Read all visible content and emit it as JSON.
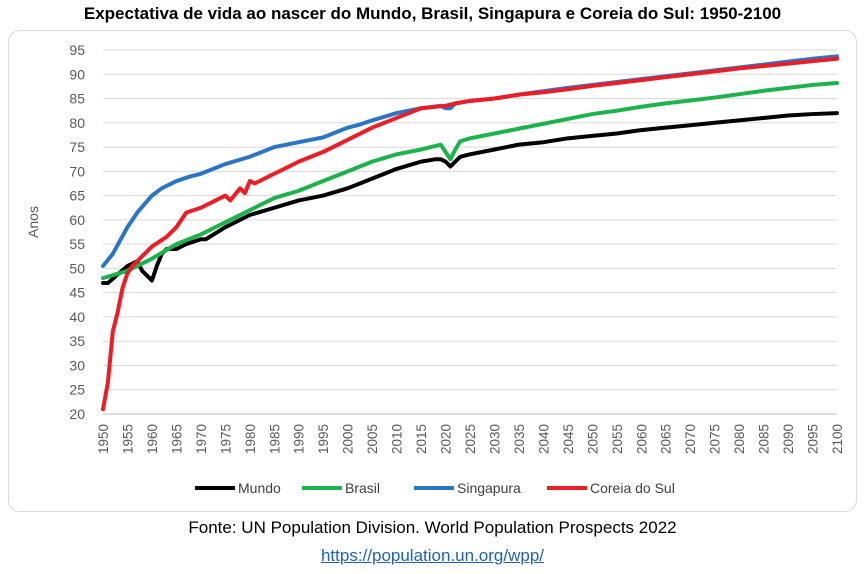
{
  "chart_data": {
    "type": "line",
    "title": "Expectativa de vida ao nascer do Mundo, Brasil, Singapura e Coreia do Sul: 1950-2100",
    "xlabel": "",
    "ylabel": "Anos",
    "xlim": [
      1950,
      2100
    ],
    "ylim": [
      20,
      95
    ],
    "yticks": [
      20,
      25,
      30,
      35,
      40,
      45,
      50,
      55,
      60,
      65,
      70,
      75,
      80,
      85,
      90,
      95
    ],
    "xticks": [
      1950,
      1955,
      1960,
      1965,
      1970,
      1975,
      1980,
      1985,
      1990,
      1995,
      2000,
      2005,
      2010,
      2015,
      2020,
      2025,
      2030,
      2035,
      2040,
      2045,
      2050,
      2055,
      2060,
      2065,
      2070,
      2075,
      2080,
      2085,
      2090,
      2095,
      2100
    ],
    "grid": true,
    "legend": "bottom",
    "series": [
      {
        "name": "Mundo",
        "color": "#000000",
        "x": [
          1950,
          1951,
          1955,
          1957,
          1958,
          1959,
          1960,
          1961,
          1962,
          1963,
          1964,
          1965,
          1967,
          1970,
          1971,
          1975,
          1980,
          1985,
          1990,
          1995,
          2000,
          2005,
          2010,
          2015,
          2018,
          2019,
          2020,
          2021,
          2022,
          2023,
          2025,
          2030,
          2035,
          2040,
          2045,
          2050,
          2055,
          2060,
          2065,
          2070,
          2075,
          2080,
          2085,
          2090,
          2095,
          2100
        ],
        "y": [
          47.0,
          47.0,
          50.5,
          51.5,
          49.5,
          48.5,
          47.5,
          50.5,
          53.0,
          54.0,
          54.0,
          54.0,
          55.0,
          56.0,
          56.0,
          58.5,
          61.0,
          62.5,
          64.0,
          65.0,
          66.5,
          68.5,
          70.5,
          72.0,
          72.5,
          72.5,
          72.0,
          71.0,
          72.0,
          73.0,
          73.5,
          74.5,
          75.5,
          76.0,
          76.8,
          77.3,
          77.8,
          78.5,
          79.0,
          79.5,
          80.0,
          80.5,
          81.0,
          81.5,
          81.8,
          82.0
        ]
      },
      {
        "name": "Brasil",
        "color": "#1cb34a",
        "x": [
          1950,
          1955,
          1960,
          1965,
          1970,
          1975,
          1980,
          1985,
          1990,
          1995,
          2000,
          2005,
          2010,
          2015,
          2019,
          2020,
          2021,
          2022,
          2023,
          2025,
          2030,
          2035,
          2040,
          2045,
          2050,
          2055,
          2060,
          2065,
          2070,
          2075,
          2080,
          2085,
          2090,
          2095,
          2100
        ],
        "y": [
          48.0,
          49.5,
          52.0,
          55.0,
          57.0,
          59.5,
          62.0,
          64.5,
          66.0,
          68.0,
          70.0,
          72.0,
          73.5,
          74.5,
          75.5,
          74.0,
          72.5,
          74.5,
          76.2,
          76.8,
          77.8,
          78.8,
          79.8,
          80.8,
          81.8,
          82.5,
          83.3,
          84.0,
          84.6,
          85.2,
          85.9,
          86.6,
          87.2,
          87.8,
          88.2
        ]
      },
      {
        "name": "Singapura",
        "color": "#2a75c8",
        "x": [
          1950,
          1952,
          1955,
          1957,
          1960,
          1962,
          1965,
          1968,
          1970,
          1975,
          1980,
          1985,
          1990,
          1995,
          2000,
          2002,
          2005,
          2010,
          2015,
          2019,
          2020,
          2021,
          2022,
          2025,
          2030,
          2035,
          2040,
          2045,
          2050,
          2055,
          2060,
          2065,
          2070,
          2075,
          2080,
          2085,
          2090,
          2095,
          2100
        ],
        "y": [
          50.5,
          53.0,
          58.5,
          61.5,
          65.0,
          66.5,
          68.0,
          69.0,
          69.5,
          71.5,
          73.0,
          75.0,
          76.0,
          77.0,
          79.0,
          79.5,
          80.5,
          82.0,
          83.0,
          83.5,
          83.0,
          83.0,
          84.0,
          84.5,
          85.0,
          85.8,
          86.5,
          87.2,
          87.8,
          88.4,
          89.0,
          89.6,
          90.2,
          90.8,
          91.4,
          92.0,
          92.6,
          93.2,
          93.7
        ]
      },
      {
        "name": "Coreia do Sul",
        "color": "#ee1c24",
        "x": [
          1950,
          1951,
          1952,
          1953,
          1954,
          1955,
          1956,
          1958,
          1960,
          1963,
          1965,
          1967,
          1970,
          1975,
          1976,
          1978,
          1979,
          1980,
          1981,
          1985,
          1990,
          1995,
          2000,
          2005,
          2010,
          2015,
          2020,
          2022,
          2025,
          2030,
          2035,
          2040,
          2045,
          2050,
          2055,
          2060,
          2065,
          2070,
          2075,
          2080,
          2085,
          2090,
          2095,
          2100
        ],
        "y": [
          21.0,
          26.5,
          37.0,
          41.0,
          46.0,
          49.0,
          50.5,
          52.5,
          54.5,
          56.5,
          58.5,
          61.5,
          62.5,
          65.0,
          64.0,
          66.5,
          65.5,
          68.0,
          67.5,
          69.5,
          72.0,
          74.0,
          76.5,
          79.0,
          81.0,
          83.0,
          83.5,
          84.0,
          84.5,
          85.0,
          85.8,
          86.3,
          86.9,
          87.6,
          88.2,
          88.8,
          89.4,
          90.0,
          90.6,
          91.2,
          91.7,
          92.2,
          92.7,
          93.2
        ]
      }
    ]
  },
  "footer": {
    "source": "Fonte: UN Population Division. World Population Prospects 2022",
    "link": "https://population.un.org/wpp/"
  }
}
